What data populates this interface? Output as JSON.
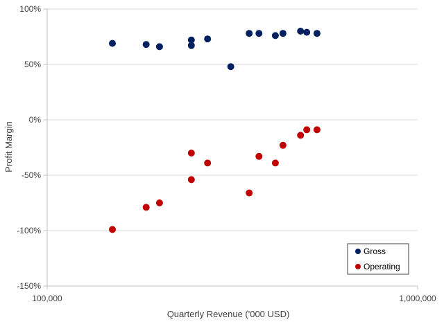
{
  "chart_data": {
    "type": "scatter",
    "title": "",
    "xlabel": "Quarterly Revenue ('000 USD)",
    "ylabel": "Profit Margin",
    "xscale": "log",
    "xlim": [
      100000,
      1000000
    ],
    "ylim": [
      -150,
      100
    ],
    "x_tick_labels": [
      "100,000",
      "1,000,000"
    ],
    "x_tick_values": [
      100000,
      1000000
    ],
    "y_tick_labels": [
      "100%",
      "50%",
      "0%",
      "-50%",
      "-100%",
      "-150%"
    ],
    "y_tick_values": [
      100,
      50,
      0,
      -50,
      -100,
      -150
    ],
    "grid": "horizontal",
    "legend_position": "bottom-right",
    "series": [
      {
        "name": "Gross",
        "color": "#002060",
        "points": [
          {
            "x": 150000,
            "y": 69
          },
          {
            "x": 185000,
            "y": 68
          },
          {
            "x": 201000,
            "y": 66
          },
          {
            "x": 245000,
            "y": 72
          },
          {
            "x": 245000,
            "y": 67
          },
          {
            "x": 271000,
            "y": 73
          },
          {
            "x": 313000,
            "y": 48
          },
          {
            "x": 351000,
            "y": 78
          },
          {
            "x": 373000,
            "y": 78
          },
          {
            "x": 413000,
            "y": 76
          },
          {
            "x": 433000,
            "y": 78
          },
          {
            "x": 483000,
            "y": 80
          },
          {
            "x": 502000,
            "y": 79
          },
          {
            "x": 535000,
            "y": 78
          }
        ]
      },
      {
        "name": "Operating",
        "color": "#C00000",
        "points": [
          {
            "x": 150000,
            "y": -99
          },
          {
            "x": 185000,
            "y": -79
          },
          {
            "x": 201000,
            "y": -75
          },
          {
            "x": 245000,
            "y": -30
          },
          {
            "x": 245000,
            "y": -54
          },
          {
            "x": 271000,
            "y": -39
          },
          {
            "x": 351000,
            "y": -66
          },
          {
            "x": 373000,
            "y": -33
          },
          {
            "x": 413000,
            "y": -39
          },
          {
            "x": 433000,
            "y": -23
          },
          {
            "x": 483000,
            "y": -14
          },
          {
            "x": 502000,
            "y": -9
          },
          {
            "x": 535000,
            "y": -9
          }
        ]
      }
    ]
  }
}
